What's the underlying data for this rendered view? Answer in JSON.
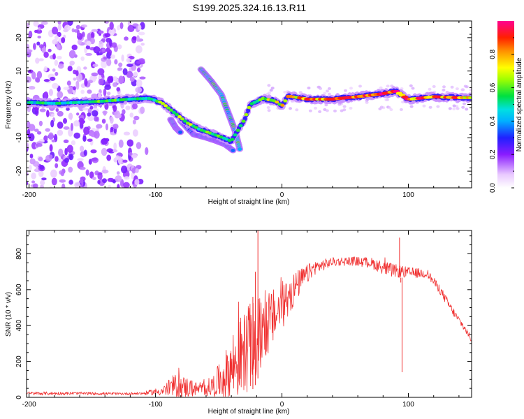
{
  "title": "S199.2025.324.16.13.R11",
  "chart_data": [
    {
      "type": "heatmap",
      "xlabel": "Height of straight line (km)",
      "ylabel": "Frequency (Hz)",
      "xlim": [
        -202,
        150
      ],
      "ylim": [
        -25,
        25
      ],
      "xticks": [
        -200,
        -100,
        0,
        100
      ],
      "yticks": [
        -20,
        -10,
        0,
        10,
        20
      ],
      "colorbar": {
        "label": "Normalized spectral amplitude",
        "range": [
          0,
          1
        ],
        "ticks": [
          "0.0",
          "0.2",
          "0.4",
          "0.6",
          "0.8"
        ],
        "tick_values": [
          0,
          0.2,
          0.4,
          0.6,
          0.8
        ]
      },
      "ridge": [
        {
          "x": -200,
          "y": 0.6,
          "a": 0.5
        },
        {
          "x": -180,
          "y": 0.3,
          "a": 0.55
        },
        {
          "x": -160,
          "y": 0.6,
          "a": 0.55
        },
        {
          "x": -140,
          "y": 1.0,
          "a": 0.6
        },
        {
          "x": -120,
          "y": 1.6,
          "a": 0.6
        },
        {
          "x": -105,
          "y": 1.8,
          "a": 0.6
        },
        {
          "x": -95,
          "y": 0.5,
          "a": 0.65
        },
        {
          "x": -85,
          "y": -2.5,
          "a": 0.7
        },
        {
          "x": -75,
          "y": -5.5,
          "a": 0.7
        },
        {
          "x": -65,
          "y": -7.5,
          "a": 0.6
        },
        {
          "x": -50,
          "y": -9.5,
          "a": 0.6
        },
        {
          "x": -40,
          "y": -11.0,
          "a": 0.55
        },
        {
          "x": -30,
          "y": -4.8,
          "a": 0.6
        },
        {
          "x": -25,
          "y": 0.0,
          "a": 0.65
        },
        {
          "x": -15,
          "y": 1.8,
          "a": 0.7
        },
        {
          "x": -5,
          "y": 1.0,
          "a": 0.7
        },
        {
          "x": 0,
          "y": -0.5,
          "a": 0.75
        },
        {
          "x": 5,
          "y": 2.5,
          "a": 0.8
        },
        {
          "x": 20,
          "y": 1.6,
          "a": 0.9
        },
        {
          "x": 40,
          "y": 1.6,
          "a": 0.9
        },
        {
          "x": 60,
          "y": 2.3,
          "a": 0.9
        },
        {
          "x": 80,
          "y": 3.2,
          "a": 0.95
        },
        {
          "x": 90,
          "y": 4.0,
          "a": 0.95
        },
        {
          "x": 100,
          "y": 1.5,
          "a": 0.9
        },
        {
          "x": 120,
          "y": 2.3,
          "a": 0.9
        },
        {
          "x": 140,
          "y": 2.0,
          "a": 0.85
        },
        {
          "x": 150,
          "y": 2.0,
          "a": 0.85
        }
      ],
      "arcs": [
        {
          "points": [
            [
              -64,
              10.5
            ],
            [
              -56,
              7
            ],
            [
              -48,
              3
            ],
            [
              -42,
              -3
            ],
            [
              -37,
              -8
            ],
            [
              -33,
              -14
            ]
          ],
          "a": 0.5
        },
        {
          "points": [
            [
              -80,
              -5
            ],
            [
              -70,
              -9
            ],
            [
              -60,
              -10
            ],
            [
              -52,
              -11
            ],
            [
              -45,
              -12
            ],
            [
              -38,
              -14
            ]
          ],
          "a": 0.35
        },
        {
          "points": [
            [
              -88,
              -4.5
            ],
            [
              -84,
              -7
            ],
            [
              -80,
              -8.5
            ]
          ],
          "a": 0.4
        }
      ]
    },
    {
      "type": "line",
      "xlabel": "Height of straight line (km)",
      "ylabel": "SNR (10 * v/v)",
      "xlim": [
        -202,
        150
      ],
      "ylim": [
        0,
        930
      ],
      "xticks": [
        -200,
        -100,
        0,
        100
      ],
      "yticks": [
        0,
        200,
        400,
        600,
        800
      ],
      "color": "#f03030",
      "envelope": [
        {
          "x": -200,
          "base": 22,
          "amp": 10
        },
        {
          "x": -160,
          "base": 22,
          "amp": 8
        },
        {
          "x": -130,
          "base": 20,
          "amp": 7
        },
        {
          "x": -110,
          "base": 22,
          "amp": 8
        },
        {
          "x": -95,
          "base": 35,
          "amp": 25
        },
        {
          "x": -85,
          "base": 60,
          "amp": 70
        },
        {
          "x": -75,
          "base": 55,
          "amp": 60
        },
        {
          "x": -65,
          "base": 45,
          "amp": 30
        },
        {
          "x": -55,
          "base": 60,
          "amp": 60
        },
        {
          "x": -45,
          "base": 120,
          "amp": 130
        },
        {
          "x": -38,
          "base": 180,
          "amp": 220
        },
        {
          "x": -30,
          "base": 250,
          "amp": 230
        },
        {
          "x": -22,
          "base": 300,
          "amp": 250
        },
        {
          "x": -15,
          "base": 380,
          "amp": 200
        },
        {
          "x": -5,
          "base": 460,
          "amp": 150
        },
        {
          "x": 5,
          "base": 560,
          "amp": 120
        },
        {
          "x": 15,
          "base": 650,
          "amp": 70
        },
        {
          "x": 25,
          "base": 720,
          "amp": 40
        },
        {
          "x": 40,
          "base": 755,
          "amp": 25
        },
        {
          "x": 55,
          "base": 760,
          "amp": 25
        },
        {
          "x": 70,
          "base": 750,
          "amp": 30
        },
        {
          "x": 85,
          "base": 710,
          "amp": 40
        },
        {
          "x": 100,
          "base": 695,
          "amp": 30
        },
        {
          "x": 115,
          "base": 690,
          "amp": 25
        },
        {
          "x": 125,
          "base": 600,
          "amp": 25
        },
        {
          "x": 135,
          "base": 480,
          "amp": 25
        },
        {
          "x": 145,
          "base": 380,
          "amp": 20
        },
        {
          "x": 150,
          "base": 320,
          "amp": 15
        }
      ],
      "spikes": [
        {
          "x": -19,
          "y": 930
        },
        {
          "x": -21,
          "y": 700
        },
        {
          "x": -23,
          "y": 560
        },
        {
          "x": 93,
          "y": 890
        },
        {
          "x": 95,
          "y": 140
        },
        {
          "x": 94,
          "y": 640
        }
      ]
    }
  ]
}
